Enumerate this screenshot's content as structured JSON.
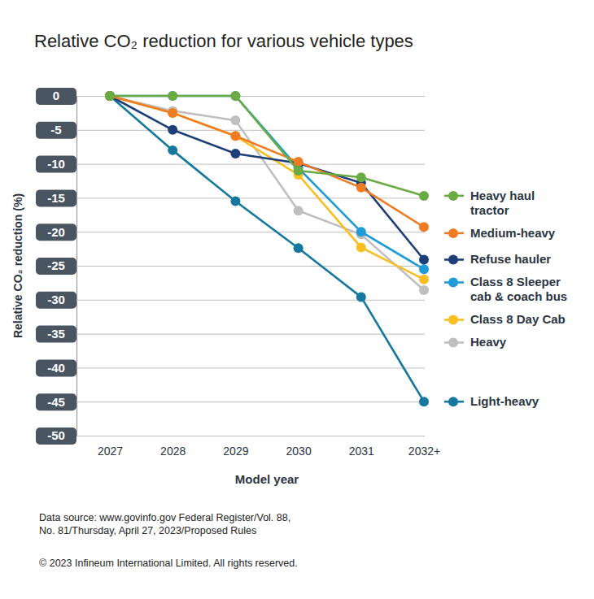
{
  "chart_data": {
    "type": "line",
    "title": "Relative CO₂ reduction for various vehicle types",
    "x_label": "Model year",
    "y_label": "Relative CO₂ reduction (%)",
    "categories": [
      "2027",
      "2028",
      "2029",
      "2030",
      "2031",
      "2032+"
    ],
    "series": [
      {
        "name": "Heavy haul tractor",
        "color": "#6aab44",
        "values": [
          0,
          0,
          0,
          -11,
          -12,
          -14.7
        ]
      },
      {
        "name": "Medium-heavy",
        "color": "#ef7c22",
        "values": [
          0,
          -2.5,
          -5.9,
          -9.7,
          -13.5,
          -19.3
        ]
      },
      {
        "name": "Refuse hauler",
        "color": "#1d3f78",
        "values": [
          0,
          -5,
          -8.5,
          -9.9,
          -12.8,
          -24.1
        ]
      },
      {
        "name": "Class 8 Sleeper cab & coach bus",
        "color": "#1f9bd7",
        "values": [
          0,
          0,
          0,
          -10.6,
          -20,
          -25.5
        ]
      },
      {
        "name": "Class 8 Day Cab",
        "color": "#f8be22",
        "values": [
          0,
          -2.5,
          -5.9,
          -11.6,
          -22.3,
          -27
        ]
      },
      {
        "name": "Heavy",
        "color": "#bfbfbf",
        "values": [
          0,
          -2.2,
          -3.6,
          -16.9,
          -20.4,
          -28.6
        ]
      },
      {
        "name": "Light-heavy",
        "color": "#15789e",
        "values": [
          0,
          -8,
          -15.5,
          -22.4,
          -29.6,
          -45
        ]
      }
    ],
    "ylim": [
      -50,
      0
    ],
    "yticks": [
      0,
      -5,
      -10,
      -15,
      -20,
      -25,
      -30,
      -35,
      -40,
      -45,
      -50
    ],
    "grid": true,
    "legend": "right",
    "marker": "circle",
    "annotations": [
      "Data source: www.govinfo.gov Federal Register/Vol. 88,",
      "No. 81/Thursday, April 27, 2023/Proposed Rules",
      "© 2023 Infineum International Limited. All rights reserved."
    ]
  }
}
